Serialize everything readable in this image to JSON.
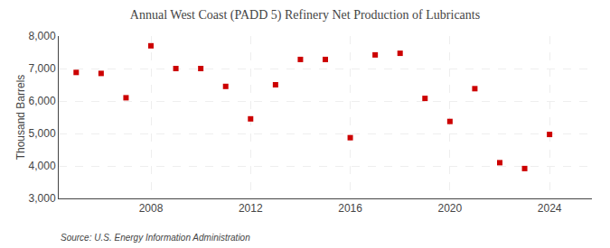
{
  "chart_data": {
    "type": "scatter",
    "title": "Annual West Coast (PADD 5) Refinery Net Production of Lubricants",
    "y_label": "Thousand Barrels",
    "annotations": [
      "Source: U.S. Energy Information Administration"
    ],
    "x": [
      2005,
      2006,
      2007,
      2008,
      2009,
      2010,
      2011,
      2012,
      2013,
      2014,
      2015,
      2016,
      2017,
      2018,
      2019,
      2020,
      2021,
      2022,
      2023,
      2024
    ],
    "values": [
      6880,
      6850,
      6100,
      7700,
      7000,
      7000,
      6450,
      5450,
      6500,
      7280,
      7280,
      4870,
      7420,
      7470,
      6080,
      5370,
      6380,
      4100,
      3920,
      4970
    ],
    "color": "#cc0000",
    "marker": "square",
    "xlim": [
      2004.3,
      2025.7
    ],
    "xticks": [
      2008,
      2012,
      2016,
      2020,
      2024
    ],
    "ylim": [
      3000,
      8000
    ],
    "yticks": [
      {
        "value": 3000,
        "label": "3,000"
      },
      {
        "value": 4000,
        "label": "4,000"
      },
      {
        "value": 5000,
        "label": "5,000"
      },
      {
        "value": 6000,
        "label": "6,000"
      },
      {
        "value": 7000,
        "label": "7,000"
      },
      {
        "value": 8000,
        "label": "8,000"
      }
    ],
    "grid": true
  }
}
